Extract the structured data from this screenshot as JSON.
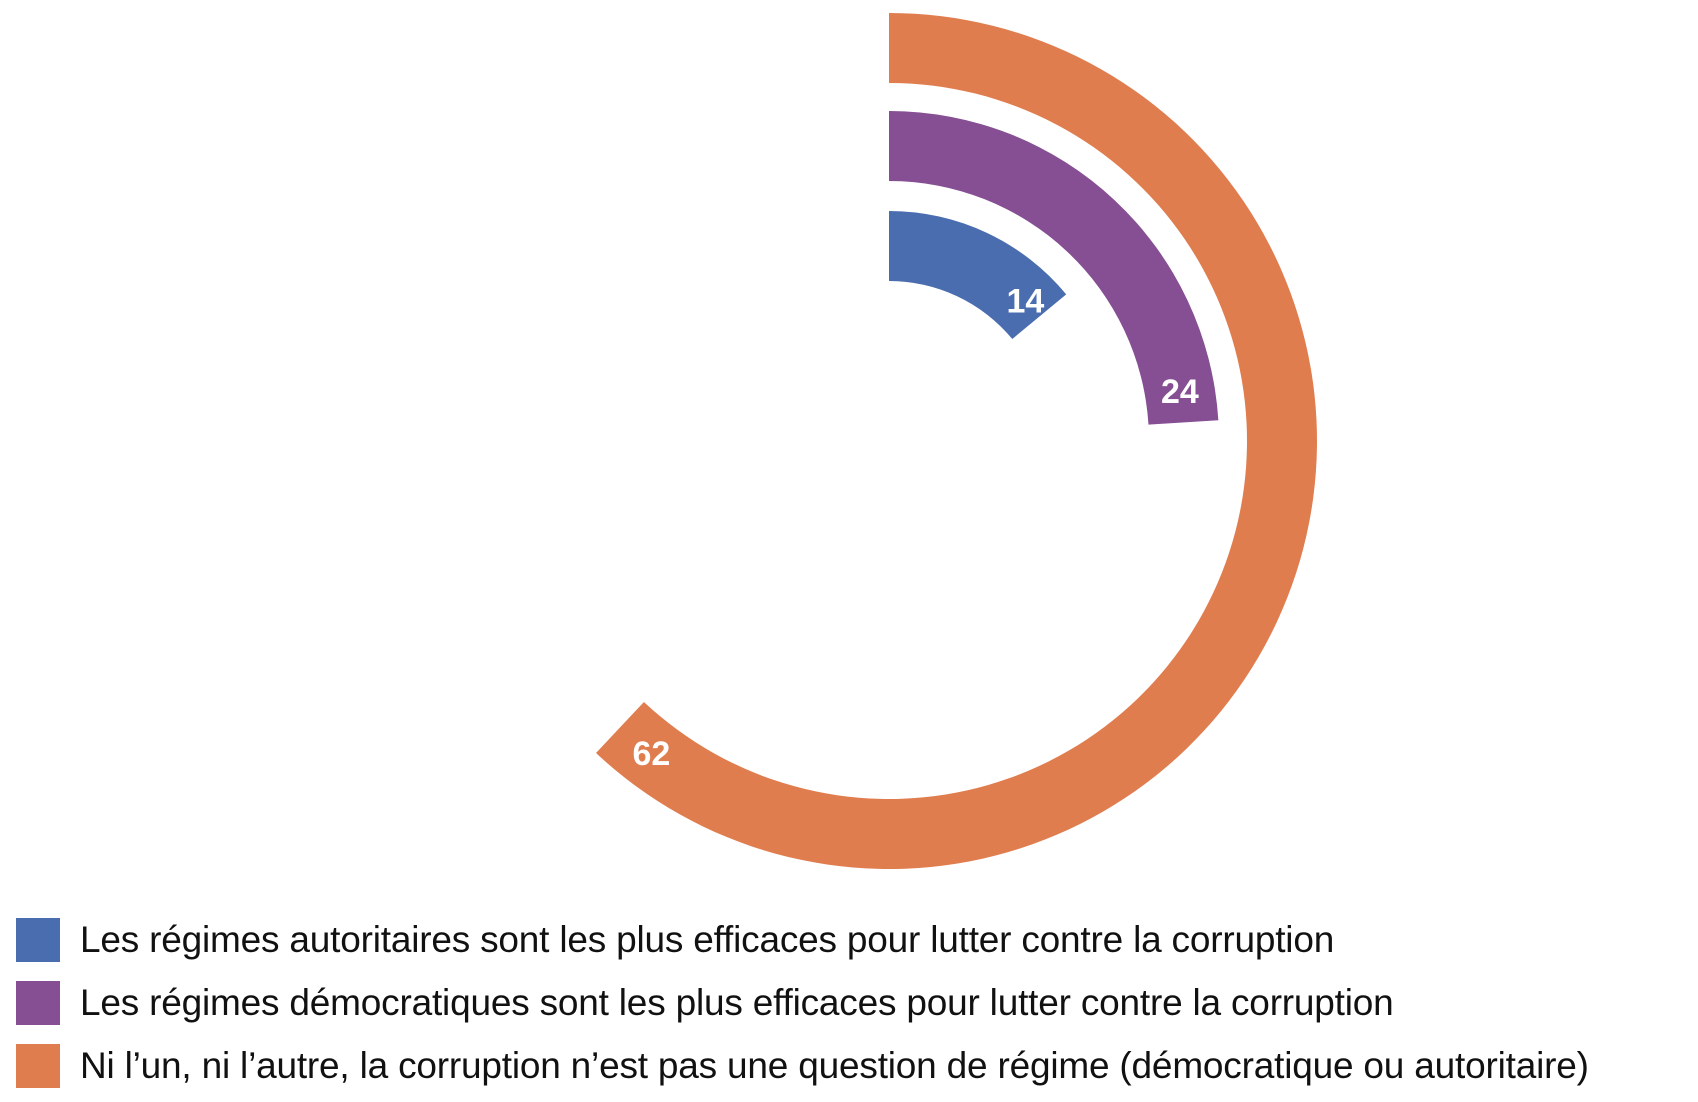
{
  "chart_data": {
    "type": "radial-bar",
    "unit": "%",
    "series": [
      {
        "name": "Les régimes autoritaires sont les plus efficaces pour lutter contre la corruption",
        "value": 14,
        "color": "#4a6db0"
      },
      {
        "name": "Les régimes démocratiques sont les plus efficaces pour lutter contre la corruption",
        "value": 24,
        "color": "#864e93"
      },
      {
        "name": "Ni l’un, ni l’autre, la corruption n’est pas une question de régime (démocratique ou autoritaire)",
        "value": 62,
        "color": "#e07d4f"
      }
    ],
    "scale_max": 100,
    "legend_position": "bottom-left"
  }
}
